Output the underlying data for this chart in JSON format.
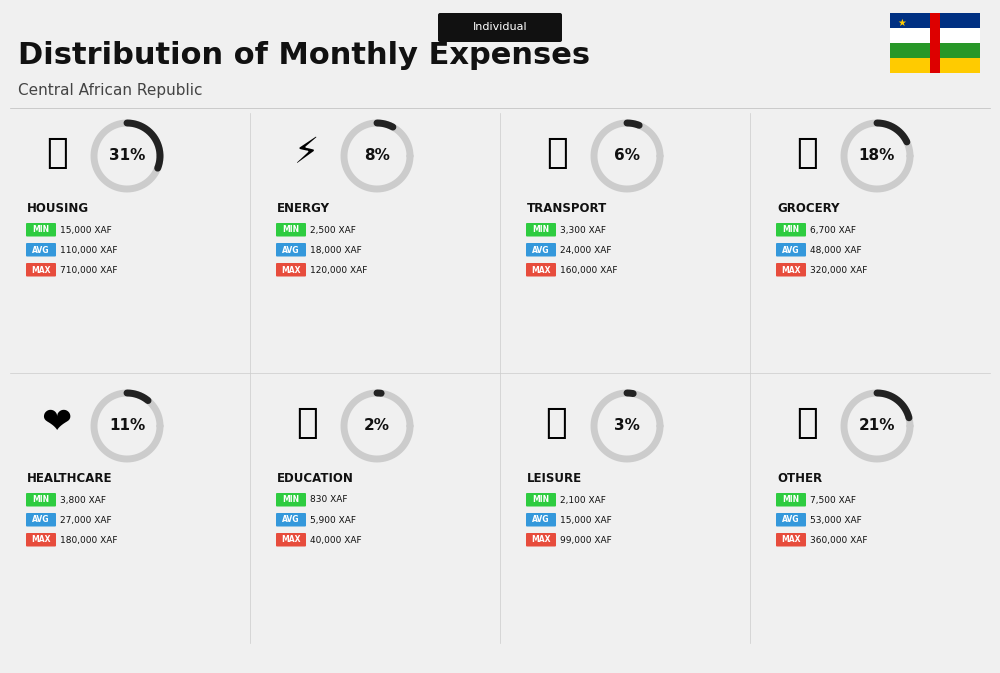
{
  "title": "Distribution of Monthly Expenses",
  "subtitle": "Central African Republic",
  "badge": "Individual",
  "bg_color": "#f0f0f0",
  "categories": [
    {
      "name": "HOUSING",
      "pct": 31,
      "min": "15,000 XAF",
      "avg": "110,000 XAF",
      "max": "710,000 XAF",
      "icon": "housing",
      "col": 0,
      "row": 0
    },
    {
      "name": "ENERGY",
      "pct": 8,
      "min": "2,500 XAF",
      "avg": "18,000 XAF",
      "max": "120,000 XAF",
      "icon": "energy",
      "col": 1,
      "row": 0
    },
    {
      "name": "TRANSPORT",
      "pct": 6,
      "min": "3,300 XAF",
      "avg": "24,000 XAF",
      "max": "160,000 XAF",
      "icon": "transport",
      "col": 2,
      "row": 0
    },
    {
      "name": "GROCERY",
      "pct": 18,
      "min": "6,700 XAF",
      "avg": "48,000 XAF",
      "max": "320,000 XAF",
      "icon": "grocery",
      "col": 3,
      "row": 0
    },
    {
      "name": "HEALTHCARE",
      "pct": 11,
      "min": "3,800 XAF",
      "avg": "27,000 XAF",
      "max": "180,000 XAF",
      "icon": "healthcare",
      "col": 0,
      "row": 1
    },
    {
      "name": "EDUCATION",
      "pct": 2,
      "min": "830 XAF",
      "avg": "5,900 XAF",
      "max": "40,000 XAF",
      "icon": "education",
      "col": 1,
      "row": 1
    },
    {
      "name": "LEISURE",
      "pct": 3,
      "min": "2,100 XAF",
      "avg": "15,000 XAF",
      "max": "99,000 XAF",
      "icon": "leisure",
      "col": 2,
      "row": 1
    },
    {
      "name": "OTHER",
      "pct": 21,
      "min": "7,500 XAF",
      "avg": "53,000 XAF",
      "max": "360,000 XAF",
      "icon": "other",
      "col": 3,
      "row": 1
    }
  ],
  "color_min": "#2ecc40",
  "color_avg": "#3498db",
  "color_max": "#e74c3c",
  "color_dark": "#111111",
  "color_circle_filled": "#222222",
  "color_circle_empty": "#cccccc"
}
